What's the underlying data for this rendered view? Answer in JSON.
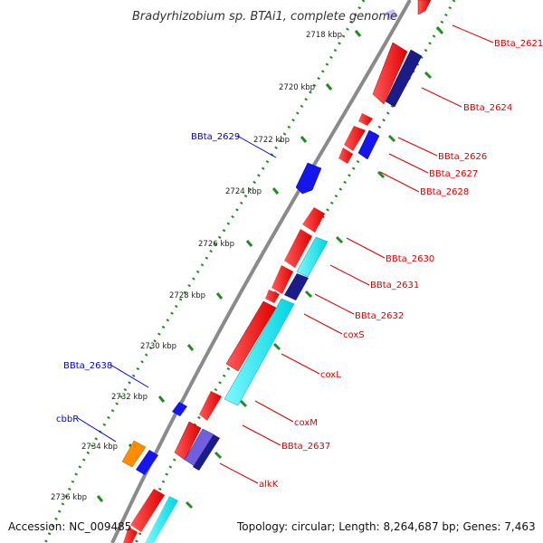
{
  "title": "Bradyrhizobium sp. BTAi1, complete genome",
  "accession": "Accession: NC_009485",
  "topology": "Topology: circular; Length: 8,264,687 bp; Genes: 7,463",
  "kbp_ticks": [
    "2718 kbp",
    "2720 kbp",
    "2722 kbp",
    "2724 kbp",
    "2726 kbp",
    "2728 kbp",
    "2730 kbp",
    "2732 kbp",
    "2734 kbp",
    "2736 kbp"
  ],
  "labels_right": [
    "BBta_2621",
    "BBta_2624",
    "BBta_2626",
    "BBta_2627",
    "BBta_2628",
    "BBta_2630",
    "BBta_2631",
    "BBta_2632",
    "coxS",
    "coxL",
    "coxM",
    "BBta_2637",
    "alkK"
  ],
  "labels_left": [
    "BBta_2629",
    "BBta_2638",
    "cbbR"
  ],
  "colors": {
    "forward_gene": "#ff0000",
    "reverse_gene": "#0000ee",
    "cds_highlight": "#00e5ee",
    "dark_gene": "#000080",
    "purple_gene": "#7b68ee",
    "orange_gene": "#ff8c00",
    "tick": "#228b22",
    "backbone": "#888888",
    "label_right": "#dd0000",
    "label_left": "#0000cc"
  }
}
